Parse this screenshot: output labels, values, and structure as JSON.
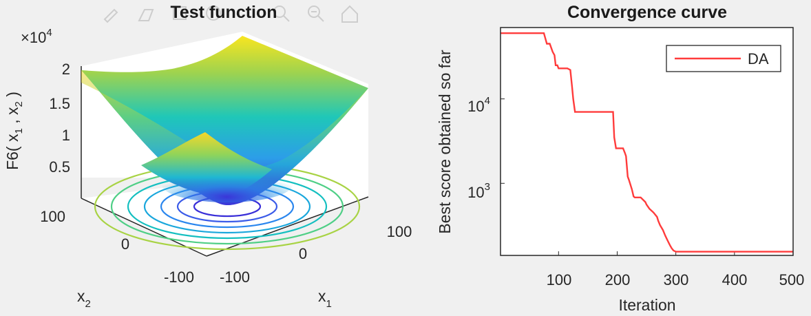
{
  "figure": {
    "toolbar_icons": [
      "edit-icon",
      "brush-icon",
      "data-cursor-icon",
      "pan-icon",
      "zoom-in-icon",
      "zoom-out-icon",
      "home-icon"
    ]
  },
  "chart_data": [
    {
      "type": "surface",
      "title": "Test function",
      "function": "F6",
      "xlabel": "x",
      "xlabel_sub": "1",
      "ylabel": "x",
      "ylabel_sub": "2",
      "zlabel": "F6( x",
      "zlabel_sub1": "1",
      "zlabel_mid": " , x",
      "zlabel_sub2": "2",
      "zlabel_end": " )",
      "z_multiplier": "×10",
      "z_multiplier_exp": "4",
      "xlim": [
        -100,
        100
      ],
      "ylim": [
        -100,
        100
      ],
      "zlim": [
        0,
        20000
      ],
      "x_ticks": [
        "-100",
        "0",
        "100"
      ],
      "y_ticks": [
        "-100",
        "0",
        "100"
      ],
      "z_ticks": [
        "0.5",
        "1",
        "1.5",
        "2"
      ],
      "colormap": "parula",
      "contours_below": true
    },
    {
      "type": "line",
      "title": "Convergence curve",
      "xlabel": "Iteration",
      "ylabel": "Best score obtained so far",
      "yscale": "log",
      "xlim": [
        1,
        500
      ],
      "ylim": [
        140,
        70000
      ],
      "x_ticks": [
        "100",
        "200",
        "300",
        "400",
        "500"
      ],
      "y_ticks": [
        {
          "base": "10",
          "exp": "3",
          "value": 1000
        },
        {
          "base": "10",
          "exp": "4",
          "value": 10000
        }
      ],
      "legend": {
        "position": "top-right"
      },
      "series": [
        {
          "name": "DA",
          "color": "#ff3b3b",
          "x": [
            1,
            75,
            80,
            85,
            90,
            93,
            95,
            98,
            100,
            115,
            120,
            123,
            125,
            128,
            130,
            193,
            195,
            198,
            210,
            213,
            215,
            218,
            220,
            225,
            228,
            230,
            240,
            248,
            250,
            255,
            262,
            268,
            270,
            273,
            278,
            282,
            286,
            290,
            293,
            296,
            300,
            500
          ],
          "y": [
            60000,
            60000,
            45000,
            45000,
            36000,
            33000,
            25000,
            25000,
            23000,
            23000,
            22000,
            14000,
            10000,
            7000,
            7000,
            7000,
            3500,
            2600,
            2600,
            2300,
            2100,
            1200,
            1100,
            850,
            700,
            680,
            680,
            600,
            560,
            500,
            450,
            400,
            360,
            320,
            280,
            240,
            210,
            185,
            170,
            160,
            155,
            155
          ]
        }
      ]
    }
  ]
}
